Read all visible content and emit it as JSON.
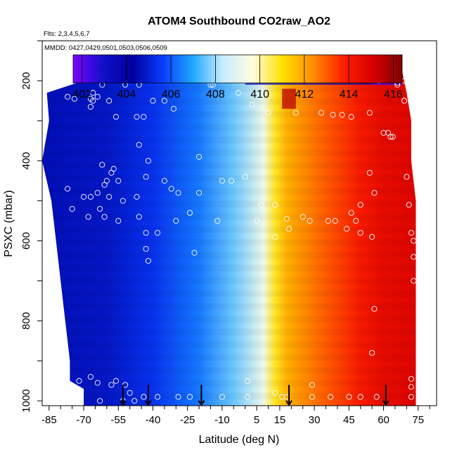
{
  "chart_data": {
    "type": "heatmap",
    "title": "ATOM4 Southbound CO2raw_AO2",
    "flights_label": "Flts: 2,3,4,5,6,7",
    "dates_label": "MMDD: 0427,0429,0501,0503,0506,0509",
    "xlabel": "Latitude (deg N)",
    "ylabel": "PSXC (mbar)",
    "xlim": [
      -88,
      83
    ],
    "ylim_reversed": [
      1012,
      100
    ],
    "x_ticks": [
      -85,
      -70,
      -55,
      -40,
      -25,
      -10,
      5,
      15,
      30,
      45,
      60,
      75
    ],
    "x_tick_labels": [
      "-85",
      "-70",
      "-55",
      "-40",
      "-25",
      "-10",
      "5",
      "15",
      "30",
      "45",
      "60",
      "75"
    ],
    "y_ticks": [
      200,
      400,
      600,
      800,
      1000
    ],
    "y_tick_labels": [
      "200",
      "400",
      "600",
      "800",
      "1000"
    ],
    "colorbar": {
      "min": 401.6,
      "max": 416.4,
      "ticks": [
        402,
        404,
        406,
        408,
        410,
        412,
        414,
        416
      ],
      "tick_labels": [
        "402",
        "404",
        "406",
        "408",
        "410",
        "412",
        "414",
        "416"
      ],
      "colors": [
        "#8000ff",
        "#1010c8",
        "#0000a0",
        "#0a3cff",
        "#1ea8ff",
        "#c8ecff",
        "#fffce0",
        "#ffe000",
        "#ff9000",
        "#ff2000",
        "#d80000",
        "#800000"
      ]
    },
    "latitude_band_values": [
      {
        "lat": -88,
        "co2": 404.6
      },
      {
        "lat": -60,
        "co2": 404.8
      },
      {
        "lat": -40,
        "co2": 405.4
      },
      {
        "lat": -20,
        "co2": 406.4
      },
      {
        "lat": -5,
        "co2": 407.6
      },
      {
        "lat": 8,
        "co2": 409.3
      },
      {
        "lat": 13,
        "co2": 410.8
      },
      {
        "lat": 18,
        "co2": 411.8
      },
      {
        "lat": 25,
        "co2": 412.4
      },
      {
        "lat": 35,
        "co2": 413.0
      },
      {
        "lat": 50,
        "co2": 414.0
      },
      {
        "lat": 60,
        "co2": 414.6
      },
      {
        "lat": 72,
        "co2": 414.8
      }
    ],
    "extent_by_pressure": [
      {
        "p": 175,
        "lat_min": -57,
        "lat_max": 68
      },
      {
        "p": 230,
        "lat_min": -86,
        "lat_max": 70
      },
      {
        "p": 300,
        "lat_min": -85,
        "lat_max": 72
      },
      {
        "p": 400,
        "lat_min": -88,
        "lat_max": 72
      },
      {
        "p": 500,
        "lat_min": -84,
        "lat_max": 74
      },
      {
        "p": 600,
        "lat_min": -82,
        "lat_max": 74
      },
      {
        "p": 700,
        "lat_min": -80,
        "lat_max": 74
      },
      {
        "p": 800,
        "lat_min": -78,
        "lat_max": 74
      },
      {
        "p": 900,
        "lat_min": -76,
        "lat_max": 74
      },
      {
        "p": 950,
        "lat_min": -76,
        "lat_max": 74
      },
      {
        "p": 970,
        "lat_min": -70,
        "lat_max": 74
      },
      {
        "p": 1012,
        "lat_min": -70,
        "lat_max": 74
      }
    ],
    "upper_layer_anomalies": [
      {
        "p_top": 160,
        "p_bot": 210,
        "lat_from": 0,
        "lat_to": 68,
        "co2": 403.5
      },
      {
        "p_top": 160,
        "p_bot": 210,
        "lat_from": 55,
        "lat_to": 68,
        "co2": 402.0
      },
      {
        "p_top": 220,
        "p_bot": 270,
        "lat_from": 16,
        "lat_to": 22,
        "co2": 415.5
      }
    ],
    "vertical_profile_markers": [
      {
        "lat": -53,
        "label": "down"
      },
      {
        "lat": -42,
        "label": "down"
      },
      {
        "lat": -19,
        "label": "down"
      },
      {
        "lat": 19,
        "label": "down"
      },
      {
        "lat": 61,
        "label": "down"
      }
    ],
    "observation_points": [
      {
        "lat": -77,
        "p": 240
      },
      {
        "lat": -74,
        "p": 245
      },
      {
        "lat": -67,
        "p": 245
      },
      {
        "lat": -66,
        "p": 230
      },
      {
        "lat": -62,
        "p": 210
      },
      {
        "lat": -59,
        "p": 250
      },
      {
        "lat": -52,
        "p": 210
      },
      {
        "lat": -46,
        "p": 210
      },
      {
        "lat": -45,
        "p": 200
      },
      {
        "lat": -40,
        "p": 250
      },
      {
        "lat": -35,
        "p": 250
      },
      {
        "lat": -31,
        "p": 270
      },
      {
        "lat": -15,
        "p": 210
      },
      {
        "lat": -14,
        "p": 210
      },
      {
        "lat": -3,
        "p": 230
      },
      {
        "lat": 3,
        "p": 260
      },
      {
        "lat": 10,
        "p": 280
      },
      {
        "lat": -64,
        "p": 240
      },
      {
        "lat": -66,
        "p": 250
      },
      {
        "lat": -67,
        "p": 265
      },
      {
        "lat": -56,
        "p": 290
      },
      {
        "lat": -47,
        "p": 290
      },
      {
        "lat": -44,
        "p": 290
      },
      {
        "lat": -46,
        "p": 360
      },
      {
        "lat": -42,
        "p": 400
      },
      {
        "lat": -35,
        "p": 450
      },
      {
        "lat": -32,
        "p": 470
      },
      {
        "lat": -29,
        "p": 480
      },
      {
        "lat": -20,
        "p": 390
      },
      {
        "lat": -62,
        "p": 410
      },
      {
        "lat": -57,
        "p": 420
      },
      {
        "lat": -58,
        "p": 430
      },
      {
        "lat": -60,
        "p": 450
      },
      {
        "lat": -61,
        "p": 460
      },
      {
        "lat": -64,
        "p": 480
      },
      {
        "lat": -70,
        "p": 490
      },
      {
        "lat": -67,
        "p": 490
      },
      {
        "lat": -59,
        "p": 490
      },
      {
        "lat": -53,
        "p": 500
      },
      {
        "lat": -47,
        "p": 490
      },
      {
        "lat": -43,
        "p": 440
      },
      {
        "lat": -55,
        "p": 450
      },
      {
        "lat": -77,
        "p": 470
      },
      {
        "lat": -75,
        "p": 520
      },
      {
        "lat": -63,
        "p": 520
      },
      {
        "lat": -68,
        "p": 540
      },
      {
        "lat": -61,
        "p": 540
      },
      {
        "lat": -55,
        "p": 550
      },
      {
        "lat": -46,
        "p": 540
      },
      {
        "lat": -43,
        "p": 580
      },
      {
        "lat": -38,
        "p": 580
      },
      {
        "lat": -30,
        "p": 550
      },
      {
        "lat": -24,
        "p": 530
      },
      {
        "lat": -20,
        "p": 480
      },
      {
        "lat": -10,
        "p": 450
      },
      {
        "lat": -6,
        "p": 450
      },
      {
        "lat": 0,
        "p": 440
      },
      {
        "lat": 7,
        "p": 510
      },
      {
        "lat": 13,
        "p": 510
      },
      {
        "lat": 5,
        "p": 550
      },
      {
        "lat": -12,
        "p": 550
      },
      {
        "lat": -43,
        "p": 620
      },
      {
        "lat": -42,
        "p": 650
      },
      {
        "lat": -22,
        "p": 630
      },
      {
        "lat": 13,
        "p": 590
      },
      {
        "lat": 19,
        "p": 570
      },
      {
        "lat": 18,
        "p": 545
      },
      {
        "lat": 25,
        "p": 540
      },
      {
        "lat": 28,
        "p": 550
      },
      {
        "lat": 36,
        "p": 550
      },
      {
        "lat": 39,
        "p": 550
      },
      {
        "lat": 46,
        "p": 530
      },
      {
        "lat": 48,
        "p": 550
      },
      {
        "lat": 50,
        "p": 580
      },
      {
        "lat": 55,
        "p": 590
      },
      {
        "lat": 44,
        "p": 570
      },
      {
        "lat": 50,
        "p": 510
      },
      {
        "lat": 56,
        "p": 480
      },
      {
        "lat": 70,
        "p": 440
      },
      {
        "lat": 71,
        "p": 510
      },
      {
        "lat": 72,
        "p": 580
      },
      {
        "lat": 73,
        "p": 600
      },
      {
        "lat": 73,
        "p": 640
      },
      {
        "lat": 73,
        "p": 700
      },
      {
        "lat": 54,
        "p": 430
      },
      {
        "lat": 54,
        "p": 280
      },
      {
        "lat": 22,
        "p": 280
      },
      {
        "lat": 33,
        "p": 280
      },
      {
        "lat": 38,
        "p": 285
      },
      {
        "lat": 42,
        "p": 285
      },
      {
        "lat": 46,
        "p": 290
      },
      {
        "lat": 60,
        "p": 330
      },
      {
        "lat": 62,
        "p": 330
      },
      {
        "lat": 63,
        "p": 340
      },
      {
        "lat": 64,
        "p": 340
      },
      {
        "lat": 69,
        "p": 250
      },
      {
        "lat": 58,
        "p": 200
      },
      {
        "lat": 66,
        "p": 210
      },
      {
        "lat": 66,
        "p": 205
      },
      {
        "lat": 69,
        "p": 200
      },
      {
        "lat": 56,
        "p": 770
      },
      {
        "lat": 55,
        "p": 880
      },
      {
        "lat": -72,
        "p": 950
      },
      {
        "lat": -67,
        "p": 940
      },
      {
        "lat": -64,
        "p": 955
      },
      {
        "lat": -58,
        "p": 960
      },
      {
        "lat": -56,
        "p": 950
      },
      {
        "lat": -50,
        "p": 980
      },
      {
        "lat": -44,
        "p": 990
      },
      {
        "lat": -38,
        "p": 990
      },
      {
        "lat": -29,
        "p": 990
      },
      {
        "lat": -24,
        "p": 990
      },
      {
        "lat": -10,
        "p": 990
      },
      {
        "lat": 1,
        "p": 990
      },
      {
        "lat": 1,
        "p": 950
      },
      {
        "lat": 13,
        "p": 980
      },
      {
        "lat": 16,
        "p": 990
      },
      {
        "lat": 18,
        "p": 990
      },
      {
        "lat": 29,
        "p": 960
      },
      {
        "lat": 29,
        "p": 990
      },
      {
        "lat": 37,
        "p": 990
      },
      {
        "lat": 45,
        "p": 990
      },
      {
        "lat": 50,
        "p": 990
      },
      {
        "lat": 57,
        "p": 990
      },
      {
        "lat": 72,
        "p": 945
      },
      {
        "lat": 72,
        "p": 965
      },
      {
        "lat": 72,
        "p": 990
      },
      {
        "lat": -63,
        "p": 1000
      },
      {
        "lat": -53,
        "p": 1000
      },
      {
        "lat": -48,
        "p": 1000
      },
      {
        "lat": -52,
        "p": 960
      }
    ]
  }
}
